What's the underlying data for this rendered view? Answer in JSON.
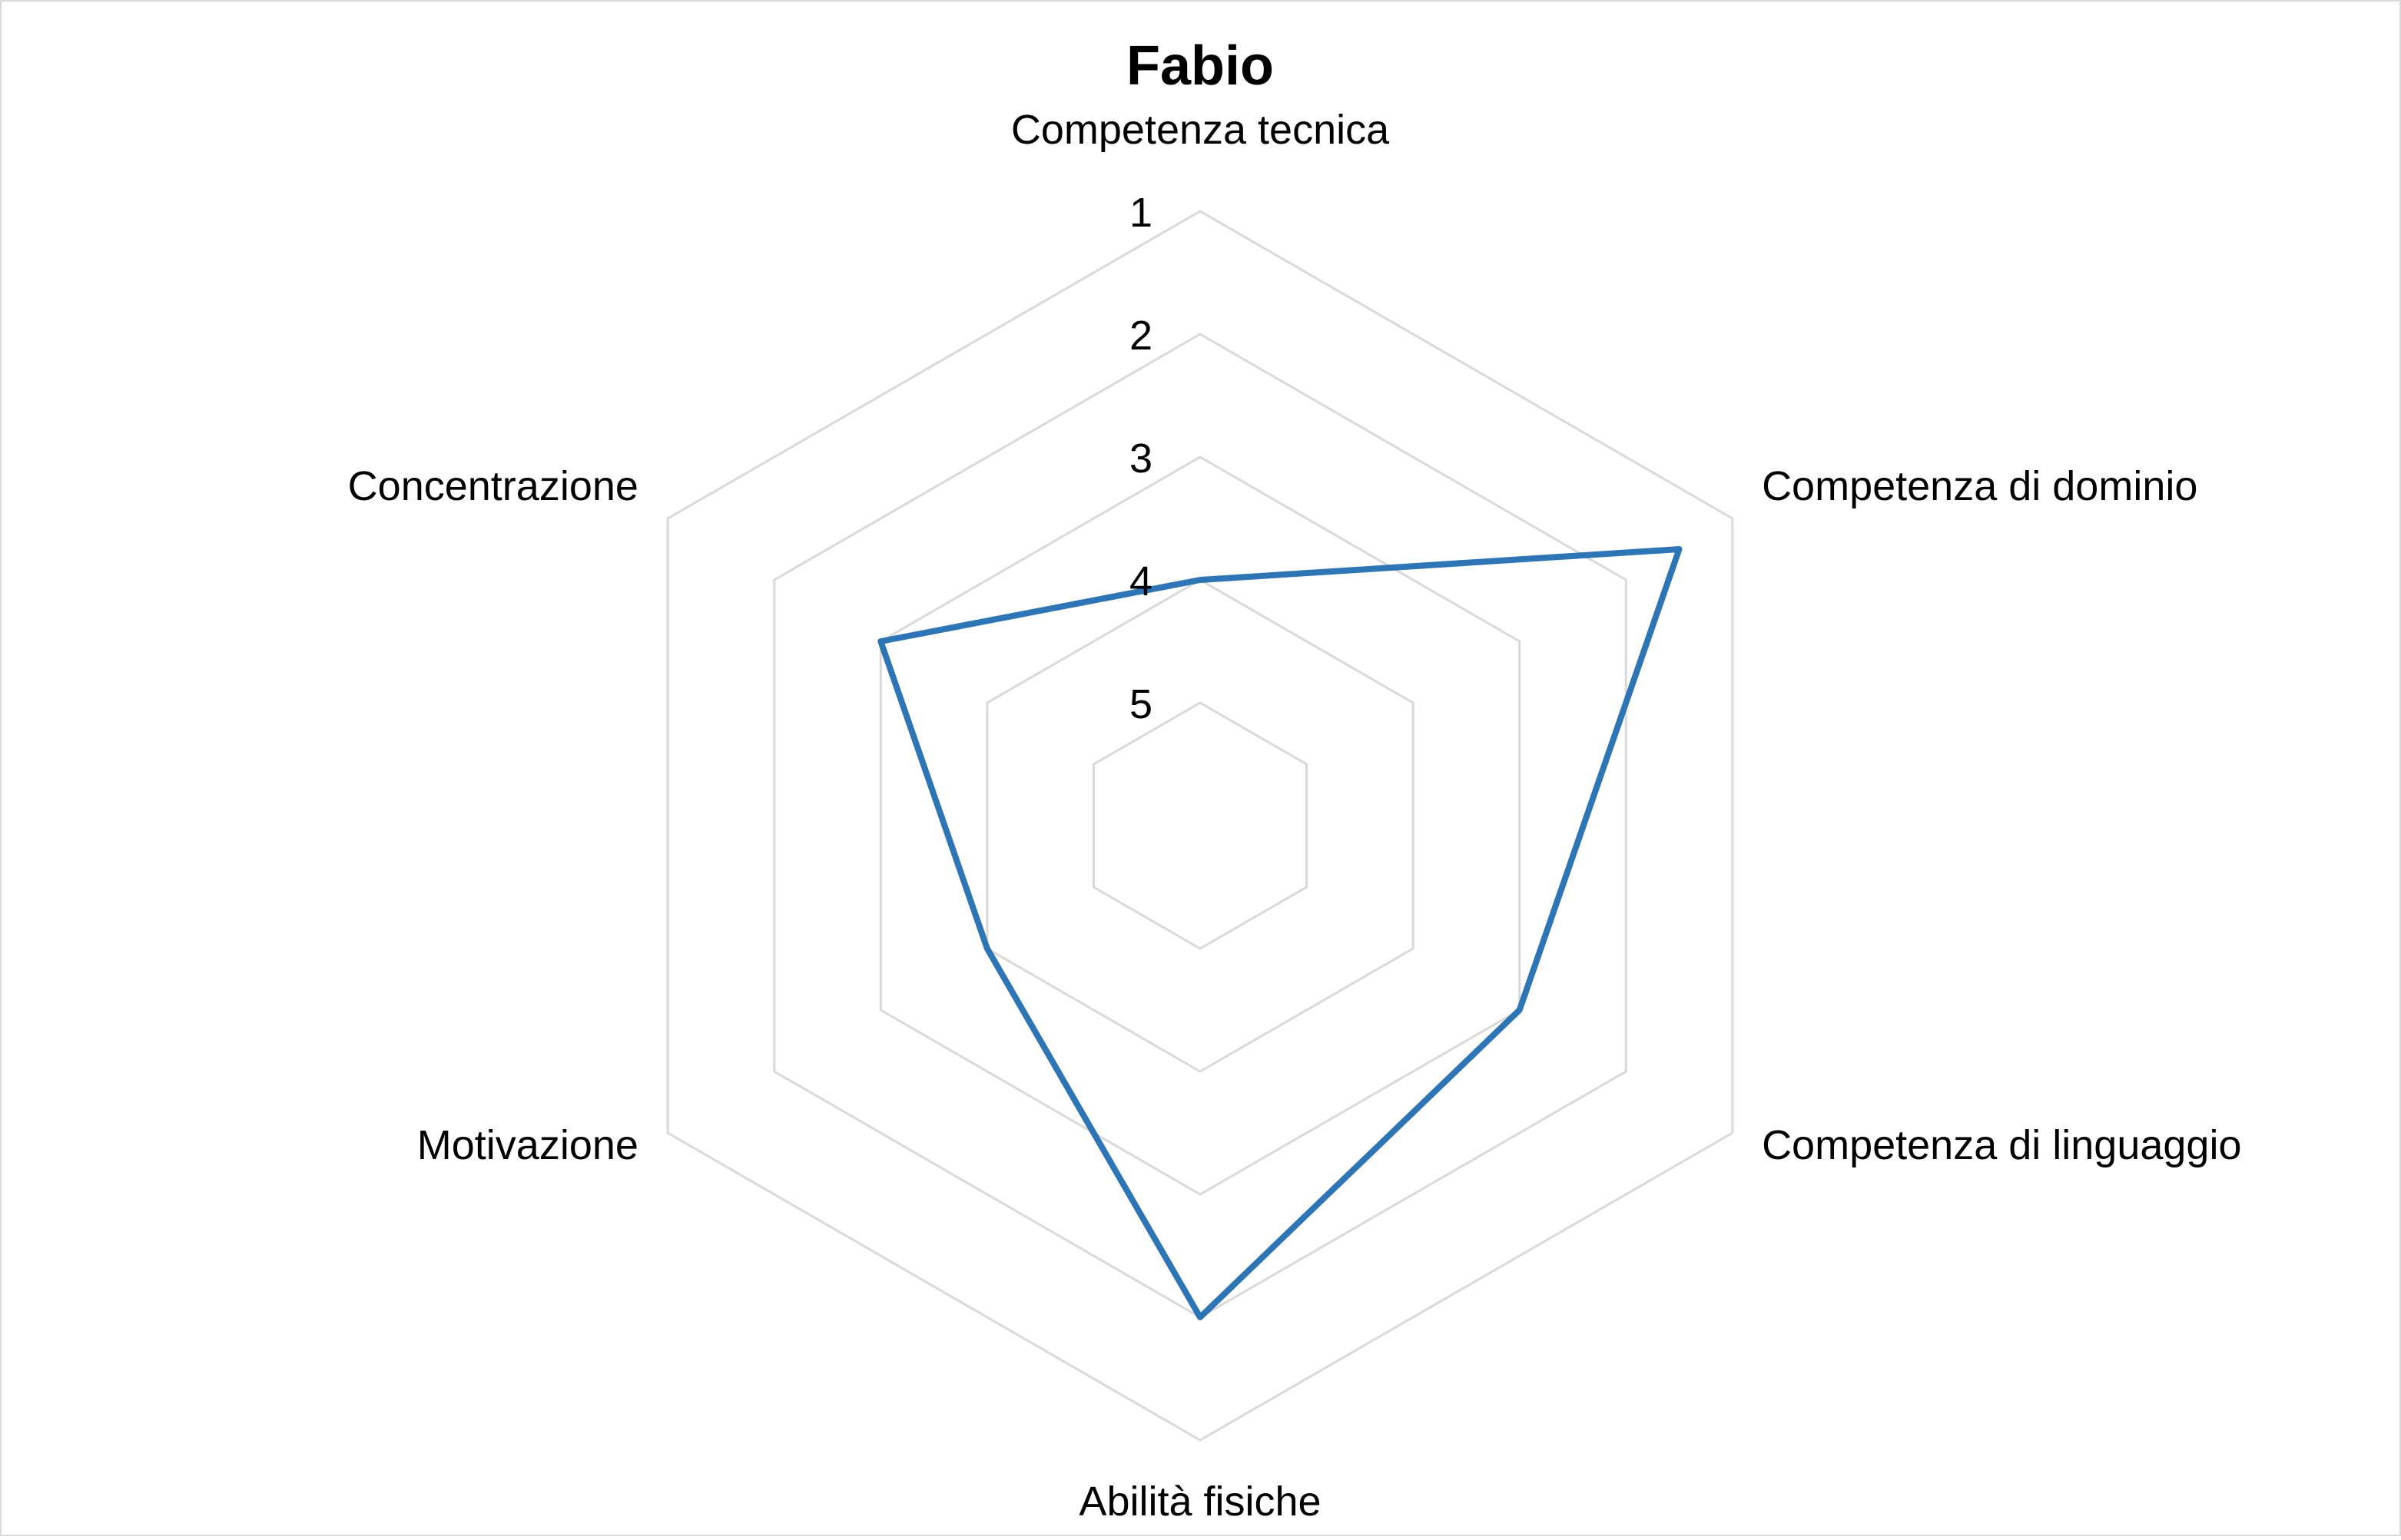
{
  "chart_data": {
    "type": "radar",
    "title": "Fabio",
    "categories": [
      "Competenza tecnica",
      "Competenza di dominio",
      "Competenza di linguaggio",
      "Abilità fisiche",
      "Motivazione",
      "Concentrazione"
    ],
    "axis": {
      "ticks": [
        "1",
        "2",
        "3",
        "4",
        "5"
      ],
      "min": 1,
      "max": 5,
      "reversed": true
    },
    "series": [
      {
        "values": [
          4,
          1.5,
          3,
          2,
          4,
          3
        ],
        "color": "#2E75B6"
      }
    ],
    "grid": true,
    "legend": false
  }
}
